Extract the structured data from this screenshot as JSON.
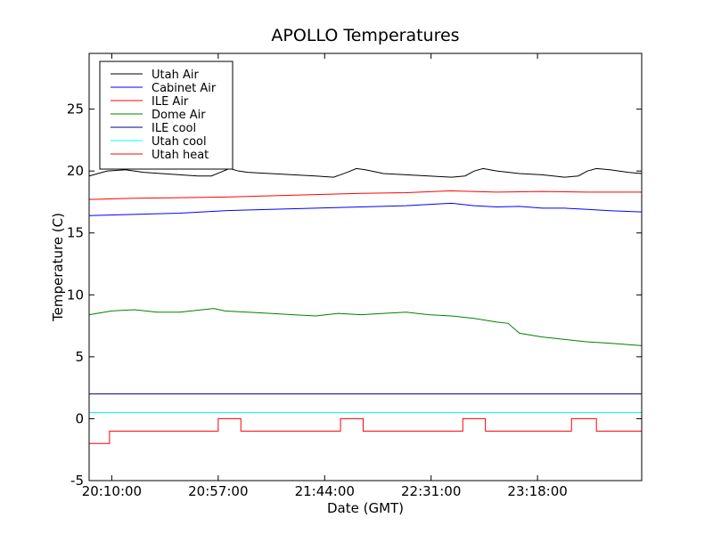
{
  "chart_data": {
    "type": "line",
    "title": "APOLLO Temperatures",
    "xlabel": "Date (GMT)",
    "ylabel": "Temperature (C)",
    "xlim_minutes": [
      0,
      244
    ],
    "ylim": [
      -5,
      29.5
    ],
    "x_ticks": [
      {
        "label": "20:10:00",
        "minutes": 10
      },
      {
        "label": "20:57:00",
        "minutes": 57
      },
      {
        "label": "21:44:00",
        "minutes": 104
      },
      {
        "label": "22:31:00",
        "minutes": 151
      },
      {
        "label": "23:18:00",
        "minutes": 198
      }
    ],
    "x_ticks_left_offset_minutes": 0,
    "y_ticks": [
      -5,
      0,
      5,
      10,
      15,
      20,
      25
    ],
    "x_axis_note": "x values are minutes after 20:00:00 GMT",
    "legend_location": "upper-left",
    "series": [
      {
        "name": "Utah Air",
        "color": "#000000",
        "x": [
          0,
          8,
          16,
          24,
          32,
          40,
          48,
          54,
          58,
          62,
          66,
          70,
          80,
          90,
          100,
          108,
          114,
          118,
          122,
          130,
          140,
          150,
          160,
          166,
          170,
          174,
          180,
          190,
          200,
          210,
          216,
          220,
          224,
          230,
          238,
          244
        ],
        "y": [
          19.6,
          20.0,
          20.1,
          19.9,
          19.8,
          19.7,
          19.6,
          19.6,
          19.9,
          20.2,
          20.0,
          19.9,
          19.8,
          19.7,
          19.6,
          19.5,
          19.9,
          20.2,
          20.1,
          19.8,
          19.7,
          19.6,
          19.5,
          19.6,
          20.0,
          20.2,
          20.0,
          19.8,
          19.7,
          19.5,
          19.6,
          20.0,
          20.2,
          20.1,
          19.9,
          19.8
        ]
      },
      {
        "name": "Cabinet Air",
        "color": "#0000ff",
        "x": [
          0,
          20,
          40,
          60,
          80,
          100,
          120,
          140,
          155,
          160,
          170,
          180,
          190,
          200,
          210,
          220,
          230,
          244
        ],
        "y": [
          16.4,
          16.5,
          16.6,
          16.8,
          16.9,
          17.0,
          17.1,
          17.2,
          17.35,
          17.4,
          17.2,
          17.1,
          17.15,
          17.0,
          17.0,
          16.9,
          16.8,
          16.7
        ]
      },
      {
        "name": "ILE Air",
        "color": "#ff0000",
        "x": [
          0,
          20,
          40,
          60,
          80,
          100,
          120,
          140,
          160,
          180,
          200,
          220,
          244
        ],
        "y": [
          17.7,
          17.8,
          17.85,
          17.9,
          18.0,
          18.1,
          18.2,
          18.25,
          18.4,
          18.3,
          18.35,
          18.3,
          18.3
        ]
      },
      {
        "name": "Dome Air",
        "color": "#008000",
        "x": [
          0,
          10,
          20,
          30,
          40,
          50,
          55,
          60,
          70,
          80,
          90,
          100,
          110,
          120,
          130,
          140,
          150,
          160,
          170,
          180,
          185,
          190,
          200,
          210,
          220,
          230,
          244
        ],
        "y": [
          8.4,
          8.7,
          8.8,
          8.6,
          8.6,
          8.8,
          8.9,
          8.7,
          8.6,
          8.5,
          8.4,
          8.3,
          8.5,
          8.4,
          8.5,
          8.6,
          8.4,
          8.3,
          8.1,
          7.8,
          7.7,
          6.9,
          6.6,
          6.4,
          6.2,
          6.1,
          5.9
        ]
      },
      {
        "name": "ILE cool",
        "color": "#000080",
        "x": [
          0,
          244
        ],
        "y": [
          2.0,
          2.0
        ]
      },
      {
        "name": "Utah cool",
        "color": "#00ffff",
        "x": [
          0,
          244
        ],
        "y": [
          0.5,
          0.5
        ]
      },
      {
        "name": "Utah heat",
        "color": "#ff0000",
        "step": true,
        "x": [
          0,
          9,
          9,
          57,
          57,
          67,
          67,
          111,
          111,
          121,
          121,
          165,
          165,
          175,
          175,
          213,
          213,
          224,
          224,
          244
        ],
        "y": [
          -2,
          -2,
          -1,
          -1,
          0,
          0,
          -1,
          -1,
          0,
          0,
          -1,
          -1,
          0,
          0,
          -1,
          -1,
          0,
          0,
          -1,
          -1
        ]
      }
    ]
  }
}
